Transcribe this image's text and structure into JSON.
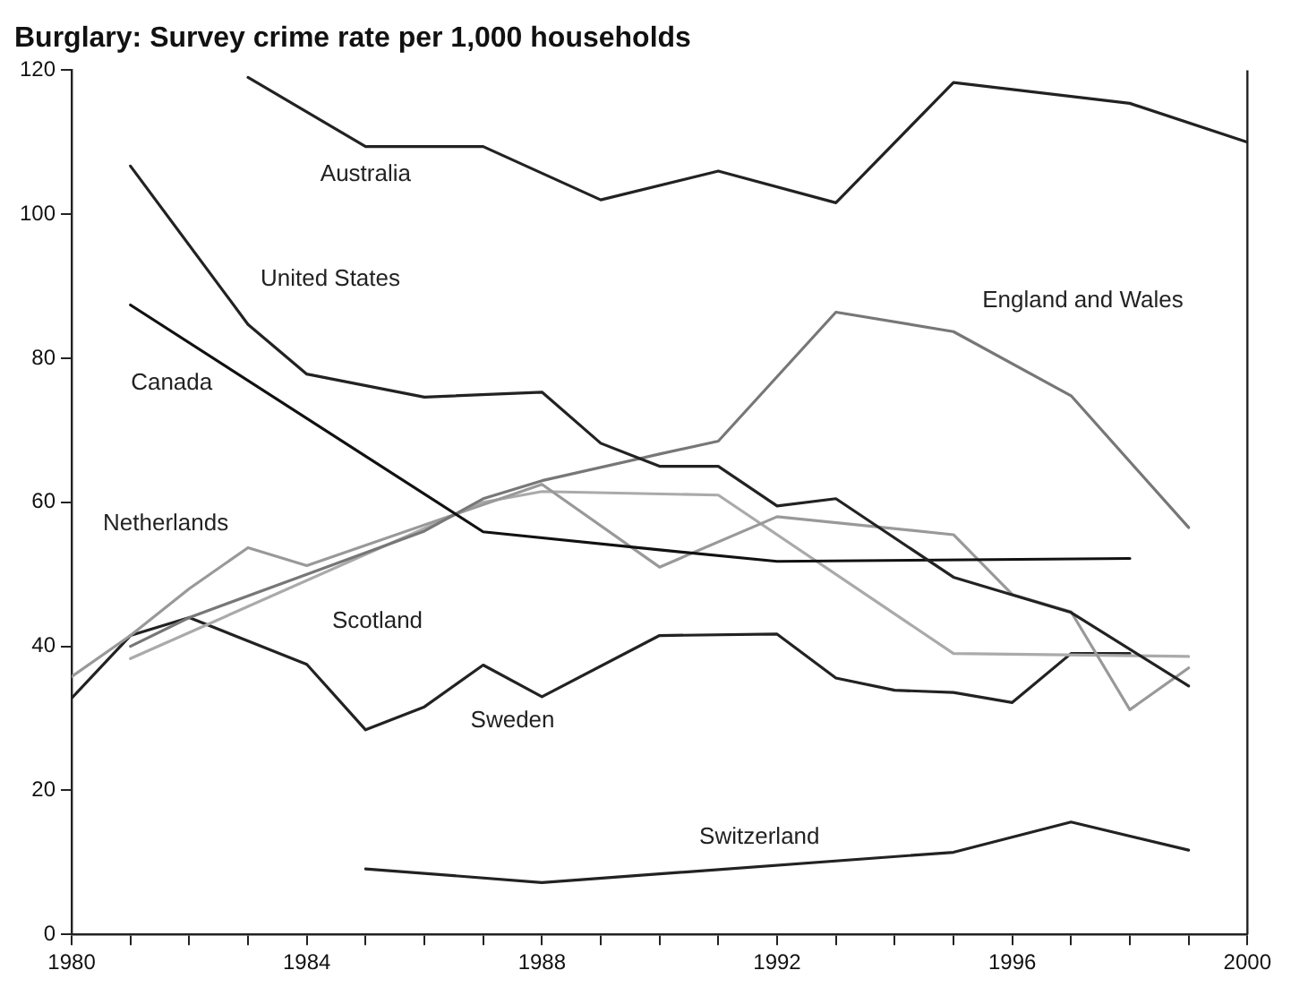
{
  "chart_data": {
    "type": "line",
    "title": "Burglary: Survey crime rate per 1,000 households",
    "xlim": [
      1980,
      2000
    ],
    "xticks": [
      1980,
      {
        "value": 1981,
        "label": null
      },
      {
        "value": 1982,
        "label": null
      },
      {
        "value": 1983,
        "label": null
      },
      1984,
      {
        "value": 1985,
        "label": null
      },
      {
        "value": 1986,
        "label": null
      },
      {
        "value": 1987,
        "label": null
      },
      1988,
      {
        "value": 1989,
        "label": null
      },
      {
        "value": 1990,
        "label": null
      },
      {
        "value": 1991,
        "label": null
      },
      1992,
      {
        "value": 1993,
        "label": null
      },
      {
        "value": 1994,
        "label": null
      },
      {
        "value": 1995,
        "label": null
      },
      1996,
      {
        "value": 1997,
        "label": null
      },
      {
        "value": 1998,
        "label": null
      },
      {
        "value": 1999,
        "label": null
      },
      2000
    ],
    "ylim": [
      0,
      120
    ],
    "yticks": [
      0,
      20,
      40,
      60,
      80,
      100,
      120
    ],
    "grid": false,
    "legend": false,
    "marker": "none",
    "line_style": "solid",
    "series": [
      {
        "name": "Australia",
        "color": "#222222",
        "x": [
          1983,
          1985,
          1987,
          1989,
          1991,
          1993,
          1995,
          1998,
          2000
        ],
        "values": [
          119,
          109.4,
          109.4,
          102,
          106,
          101.6,
          118.3,
          115.4,
          110
        ]
      },
      {
        "name": "United States",
        "color": "#222222",
        "x": [
          1981,
          1983,
          1984,
          1986,
          1988,
          1989,
          1990,
          1991,
          1992,
          1993,
          1995,
          1997,
          1999
        ],
        "values": [
          106.7,
          84.7,
          77.8,
          74.6,
          75.3,
          68.2,
          65,
          65,
          59.5,
          60.5,
          49.6,
          44.7,
          34.5
        ]
      },
      {
        "name": "Canada",
        "color": "#111111",
        "x": [
          1981,
          1987,
          1990,
          1992,
          1998
        ],
        "values": [
          87.4,
          55.9,
          53.4,
          51.8,
          52.2
        ]
      },
      {
        "name": "England and Wales",
        "color": "#777777",
        "x": [
          1981,
          1982,
          1984,
          1986,
          1987,
          1988,
          1990,
          1991,
          1993,
          1995,
          1997,
          1999
        ],
        "values": [
          40,
          44,
          50,
          56,
          60.5,
          63,
          66.7,
          68.5,
          86.4,
          83.7,
          74.8,
          56.5
        ]
      },
      {
        "name": "Netherlands",
        "color": "#999999",
        "x": [
          1980,
          1981,
          1982,
          1983,
          1984,
          1988,
          1990,
          1992,
          1995,
          1996,
          1997,
          1998,
          1999
        ],
        "values": [
          35.8,
          41.5,
          48,
          53.7,
          51.2,
          62.5,
          51,
          58,
          55.5,
          47.2,
          44.8,
          31.2,
          37
        ]
      },
      {
        "name": "Scotland",
        "color": "#aaaaaa",
        "x": [
          1981,
          1987,
          1988,
          1991,
          1995,
          1999
        ],
        "values": [
          38.3,
          60,
          61.5,
          61,
          39,
          38.6
        ]
      },
      {
        "name": "Sweden",
        "color": "#222222",
        "x": [
          1980,
          1981,
          1982,
          1984,
          1985,
          1986,
          1987,
          1988,
          1990,
          1992,
          1993,
          1994,
          1995,
          1996,
          1997,
          1998
        ],
        "values": [
          32.8,
          41.5,
          44,
          37.5,
          28.4,
          31.6,
          37.4,
          33,
          41.5,
          41.7,
          35.6,
          33.9,
          33.6,
          32.2,
          39,
          39
        ]
      },
      {
        "name": "Switzerland",
        "color": "#222222",
        "x": [
          1985,
          1988,
          1990,
          1995,
          1997,
          1999
        ],
        "values": [
          9.1,
          7.2,
          8.4,
          11.4,
          15.6,
          11.7
        ]
      }
    ]
  }
}
